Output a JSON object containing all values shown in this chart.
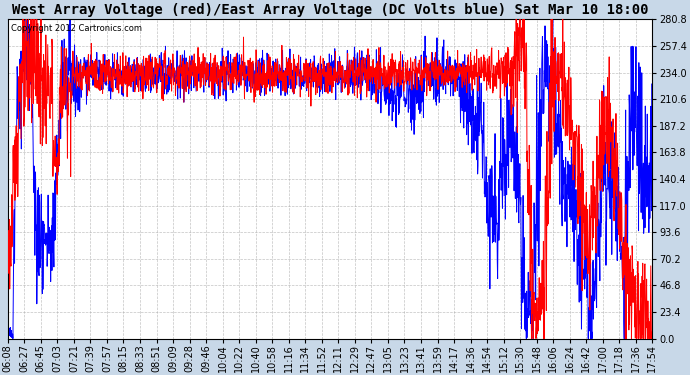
{
  "title": "West Array Voltage (red)/East Array Voltage (DC Volts blue) Sat Mar 10 18:00",
  "copyright_text": "Copyright 2012 Cartronics.com",
  "ylim": [
    0.0,
    280.8
  ],
  "yticks": [
    0.0,
    23.4,
    46.8,
    70.2,
    93.6,
    117.0,
    140.4,
    163.8,
    187.2,
    210.6,
    234.0,
    257.4,
    280.8
  ],
  "background_color": "#ffffff",
  "fig_color": "#c8d8e8",
  "grid_color": "#aaaaaa",
  "red_color": "#ff0000",
  "blue_color": "#0000ff",
  "title_fontsize": 10,
  "tick_fontsize": 7,
  "copyright_fontsize": 6,
  "x_tick_labels": [
    "06:08",
    "06:27",
    "06:45",
    "07:03",
    "07:21",
    "07:39",
    "07:57",
    "08:15",
    "08:33",
    "08:51",
    "09:09",
    "09:28",
    "09:46",
    "10:04",
    "10:22",
    "10:40",
    "10:58",
    "11:16",
    "11:34",
    "11:52",
    "12:11",
    "12:29",
    "12:47",
    "13:05",
    "13:23",
    "13:41",
    "13:59",
    "14:17",
    "14:36",
    "14:54",
    "15:12",
    "15:30",
    "15:48",
    "16:06",
    "16:24",
    "16:42",
    "17:00",
    "17:18",
    "17:36",
    "17:54"
  ]
}
